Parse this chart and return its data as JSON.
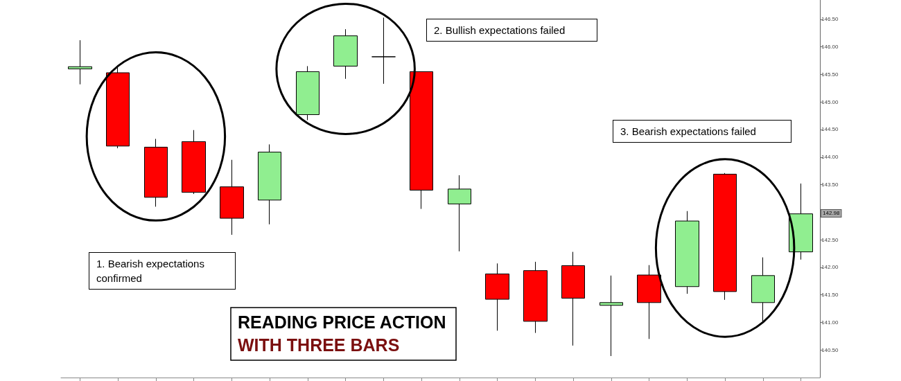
{
  "chart_data": {
    "type": "candlestick",
    "title": "READING PRICE ACTION",
    "subtitle": "WITH THREE BARS",
    "categories": [
      null,
      null,
      null,
      null,
      null,
      null,
      null,
      null,
      null,
      null,
      null,
      null,
      null,
      null,
      null,
      null,
      null,
      null,
      null,
      null
    ],
    "ohlc": [
      [
        145.6,
        146.12,
        145.32,
        145.64
      ],
      [
        145.53,
        145.65,
        144.16,
        144.2
      ],
      [
        144.18,
        144.33,
        143.1,
        143.27
      ],
      [
        144.28,
        144.49,
        143.33,
        143.36
      ],
      [
        143.46,
        143.95,
        142.59,
        142.89
      ],
      [
        143.22,
        144.23,
        142.78,
        144.09
      ],
      [
        144.77,
        145.65,
        144.67,
        145.55
      ],
      [
        145.65,
        146.32,
        145.42,
        146.2
      ],
      [
        145.82,
        146.53,
        145.33,
        145.82
      ],
      [
        145.55,
        145.55,
        143.06,
        143.4
      ],
      [
        143.15,
        143.67,
        142.29,
        143.42
      ],
      [
        141.88,
        142.07,
        140.85,
        141.42
      ],
      [
        141.94,
        142.1,
        140.81,
        141.02
      ],
      [
        142.03,
        142.28,
        140.58,
        141.44
      ],
      [
        141.31,
        141.85,
        140.39,
        141.36
      ],
      [
        141.86,
        142.04,
        140.7,
        141.36
      ],
      [
        141.65,
        143.02,
        141.52,
        142.84
      ],
      [
        143.69,
        143.71,
        141.41,
        141.56
      ],
      [
        141.36,
        142.18,
        140.99,
        141.85
      ],
      [
        142.28,
        143.52,
        142.14,
        142.97
      ]
    ],
    "colors": [
      "#90ee90",
      "#ff0000",
      "#ff0000",
      "#ff0000",
      "#ff0000",
      "#90ee90",
      "#90ee90",
      "#90ee90",
      "#000000",
      "#ff0000",
      "#90ee90",
      "#ff0000",
      "#ff0000",
      "#ff0000",
      "#90ee90",
      "#ff0000",
      "#90ee90",
      "#ff0000",
      "#90ee90",
      "#90ee90"
    ],
    "ylim": [
      140.0,
      146.85
    ],
    "yticks": [
      {
        "value": 140.5,
        "label": "140.50"
      },
      {
        "value": 141,
        "label": "141.00"
      },
      {
        "value": 141.5,
        "label": "141.50"
      },
      {
        "value": 142,
        "label": "142.00"
      },
      {
        "value": 142.5,
        "label": "142.50"
      },
      {
        "value": 143,
        "label": null
      },
      {
        "value": 143.5,
        "label": "143.50"
      },
      {
        "value": 144,
        "label": "144.00"
      },
      {
        "value": 144.5,
        "label": "144.50"
      },
      {
        "value": 145,
        "label": "145.00"
      },
      {
        "value": 145.5,
        "label": "145.50"
      },
      {
        "value": 146,
        "label": "146.00"
      },
      {
        "value": 146.5,
        "label": "146.50"
      }
    ],
    "tick_labels": "y",
    "grid": false,
    "annotations": [
      "1. Bearish expectations confirmed",
      "2. Bullish expectations failed",
      "3. Bearish expectations failed",
      {
        "text": "142.98",
        "y": 142.98
      }
    ]
  }
}
